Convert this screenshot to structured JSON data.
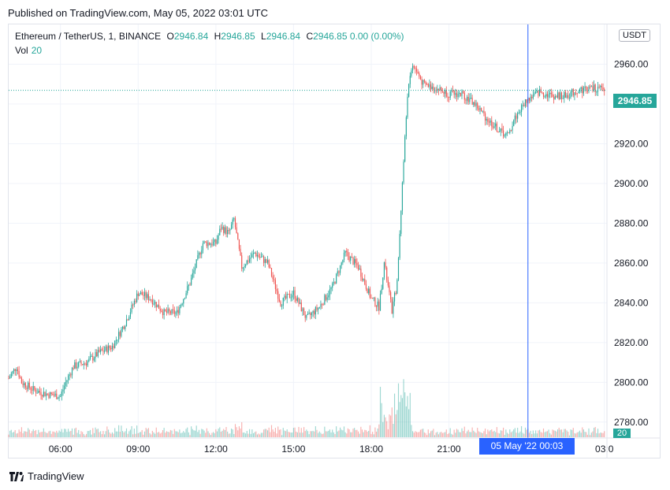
{
  "header": {
    "published": "Published on TradingView.com, May 05, 2022 03:01 UTC"
  },
  "legend": {
    "symbol": "Ethereum / TetherUS, 1, BINANCE",
    "o_label": "O",
    "o": "2946.84",
    "h_label": "H",
    "h": "2946.85",
    "l_label": "L",
    "l": "2946.84",
    "c_label": "C",
    "c": "2946.85",
    "change": "0.00 (0.00%)",
    "vol_label": "Vol",
    "vol": "20"
  },
  "currency": "USDT",
  "last_price_label": "2946.85",
  "last_volume_label": "20",
  "crosshair_time": "05 May '22   00:03",
  "footer": {
    "brand": "TradingView"
  },
  "colors": {
    "up": "#26a69a",
    "down": "#ef5350",
    "crosshair": "#2962ff",
    "grid": "#f0f3fa"
  },
  "chart_data": {
    "type": "candlestick",
    "symbol": "Ethereum / TetherUS, 1, BINANCE",
    "y_ticks": [
      "2780.00",
      "2800.00",
      "2820.00",
      "2840.00",
      "2860.00",
      "2880.00",
      "2900.00",
      "2920.00",
      "2940.00",
      "2960.00"
    ],
    "y_tick_values": [
      2780,
      2800,
      2820,
      2840,
      2860,
      2880,
      2900,
      2920,
      2940,
      2960
    ],
    "x_ticks": [
      "06:00",
      "09:00",
      "12:00",
      "15:00",
      "18:00",
      "21:00",
      "03:0"
    ],
    "x_tick_hours": [
      6,
      9,
      12,
      15,
      18,
      21,
      27
    ],
    "ylim": [
      2772,
      2980
    ],
    "xlim_hours": [
      4.0,
      27.1
    ],
    "last_price": 2946.85,
    "crosshair_hour": 24.05,
    "price_path": [
      {
        "t": 4.0,
        "p": 2802
      },
      {
        "t": 4.3,
        "p": 2808
      },
      {
        "t": 4.5,
        "p": 2800
      },
      {
        "t": 5.0,
        "p": 2796
      },
      {
        "t": 5.5,
        "p": 2794
      },
      {
        "t": 6.0,
        "p": 2793
      },
      {
        "t": 6.2,
        "p": 2800
      },
      {
        "t": 6.5,
        "p": 2808
      },
      {
        "t": 7.0,
        "p": 2810
      },
      {
        "t": 7.5,
        "p": 2815
      },
      {
        "t": 8.0,
        "p": 2818
      },
      {
        "t": 8.5,
        "p": 2830
      },
      {
        "t": 9.0,
        "p": 2845
      },
      {
        "t": 9.5,
        "p": 2842
      },
      {
        "t": 10.0,
        "p": 2835
      },
      {
        "t": 10.5,
        "p": 2835
      },
      {
        "t": 11.0,
        "p": 2850
      },
      {
        "t": 11.5,
        "p": 2870
      },
      {
        "t": 12.0,
        "p": 2870
      },
      {
        "t": 12.2,
        "p": 2878
      },
      {
        "t": 12.5,
        "p": 2875
      },
      {
        "t": 12.7,
        "p": 2882
      },
      {
        "t": 13.0,
        "p": 2858
      },
      {
        "t": 13.5,
        "p": 2865
      },
      {
        "t": 14.0,
        "p": 2860
      },
      {
        "t": 14.5,
        "p": 2840
      },
      {
        "t": 15.0,
        "p": 2845
      },
      {
        "t": 15.5,
        "p": 2832
      },
      {
        "t": 16.0,
        "p": 2838
      },
      {
        "t": 16.5,
        "p": 2848
      },
      {
        "t": 17.0,
        "p": 2865
      },
      {
        "t": 17.5,
        "p": 2858
      },
      {
        "t": 18.0,
        "p": 2842
      },
      {
        "t": 18.3,
        "p": 2838
      },
      {
        "t": 18.5,
        "p": 2860
      },
      {
        "t": 18.8,
        "p": 2836
      },
      {
        "t": 19.0,
        "p": 2850
      },
      {
        "t": 19.2,
        "p": 2900
      },
      {
        "t": 19.4,
        "p": 2945
      },
      {
        "t": 19.6,
        "p": 2960
      },
      {
        "t": 20.0,
        "p": 2950
      },
      {
        "t": 20.5,
        "p": 2948
      },
      {
        "t": 21.0,
        "p": 2945
      },
      {
        "t": 21.5,
        "p": 2945
      },
      {
        "t": 22.0,
        "p": 2940
      },
      {
        "t": 22.5,
        "p": 2932
      },
      {
        "t": 23.0,
        "p": 2926
      },
      {
        "t": 23.3,
        "p": 2924
      },
      {
        "t": 23.5,
        "p": 2932
      },
      {
        "t": 24.0,
        "p": 2942
      },
      {
        "t": 24.5,
        "p": 2946
      },
      {
        "t": 25.0,
        "p": 2944
      },
      {
        "t": 25.5,
        "p": 2944
      },
      {
        "t": 26.0,
        "p": 2947
      },
      {
        "t": 26.5,
        "p": 2948
      },
      {
        "t": 27.0,
        "p": 2947
      }
    ]
  }
}
